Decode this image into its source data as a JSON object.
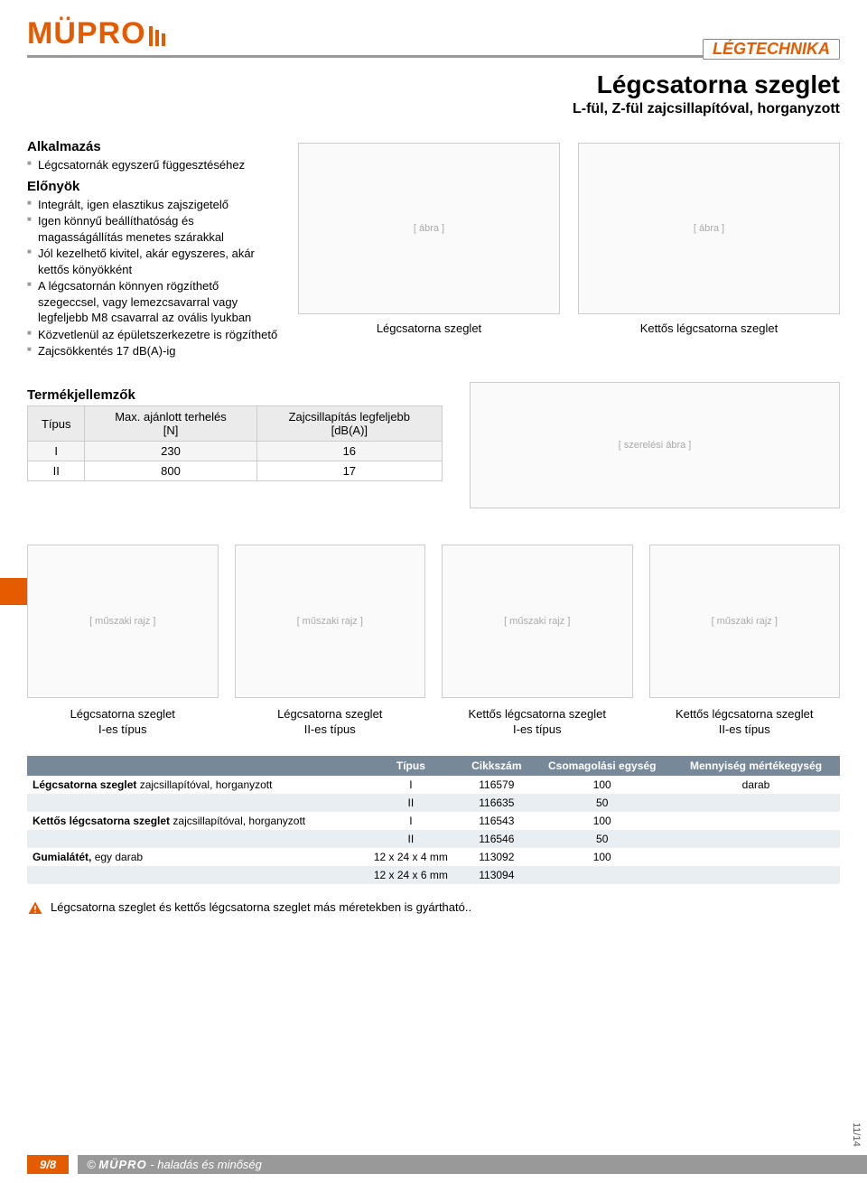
{
  "brand": "MÜPRO",
  "header_badge": "LÉGTECHNIKA",
  "title": "Légcsatorna szeglet",
  "subtitle": "L-fül, Z-fül zajcsillapítóval, horganyzott",
  "section_app": "Alkalmazás",
  "app_items": [
    "Légcsatornák egyszerű függesztéséhez"
  ],
  "section_adv": "Előnyök",
  "adv_items": [
    "Integrált, igen elasztikus zajszigetelő",
    "Igen könnyű beállíthatóság és magasságállítás menetes szárakkal",
    "Jól kezelhető kivitel, akár egyszeres, akár kettős könyökként",
    "A légcsatornán könnyen rögzíthető szegeccsel, vagy lemezcsavarral vagy legfeljebb M8 csavarral az ovális lyukban",
    "Közvetlenül az épületszerkezetre is rögzíthető",
    "Zajcsökkentés 17 dB(A)-ig"
  ],
  "fig1_caption": "Légcsatorna szeglet",
  "fig2_caption": "Kettős légcsatorna szeglet",
  "section_spec": "Termékjellemzők",
  "spec_headers": [
    "Típus",
    "Max. ajánlott terhelés\n[N]",
    "Zajcsillapítás legfeljebb\n[dB(A)]"
  ],
  "spec_rows": [
    [
      "I",
      "230",
      "16"
    ],
    [
      "II",
      "800",
      "17"
    ]
  ],
  "drawings": [
    "Légcsatorna szeglet\nI-es típus",
    "Légcsatorna szeglet\nII-es típus",
    "Kettős légcsatorna szeglet\nI-es típus",
    "Kettős légcsatorna szeglet\nII-es típus"
  ],
  "order_headers": [
    "",
    "Típus",
    "Cikkszám",
    "Csomagolási egység",
    "Mennyiség mértékegység"
  ],
  "order_rows": [
    {
      "name": "Légcsatorna szeglet",
      "sub": "zajcsillapítóval, horganyzott",
      "type": "I",
      "art": "116579",
      "pack": "100",
      "unit": "darab"
    },
    {
      "name": "",
      "sub": "",
      "type": "II",
      "art": "116635",
      "pack": "50",
      "unit": ""
    },
    {
      "name": "Kettős légcsatorna szeglet",
      "sub": "zajcsillapítóval, horganyzott",
      "type": "I",
      "art": "116543",
      "pack": "100",
      "unit": ""
    },
    {
      "name": "",
      "sub": "",
      "type": "II",
      "art": "116546",
      "pack": "50",
      "unit": ""
    },
    {
      "name": "Gumialátét,",
      "sub": "egy darab",
      "type": "12 x 24 x 4 mm",
      "art": "113092",
      "pack": "100",
      "unit": ""
    },
    {
      "name": "",
      "sub": "",
      "type": "12 x 24 x 6 mm",
      "art": "113094",
      "pack": "",
      "unit": ""
    }
  ],
  "note_text": "Légcsatorna szeglet és kettős légcsatorna szeglet más méretekben is gyártható..",
  "footer_page": "9/8",
  "footer_text": "- haladás és minőség",
  "footer_copy": "©",
  "side_code": "11/14",
  "colors": {
    "brand": "#e55b00",
    "rule": "#999",
    "th_bg": "#789"
  }
}
